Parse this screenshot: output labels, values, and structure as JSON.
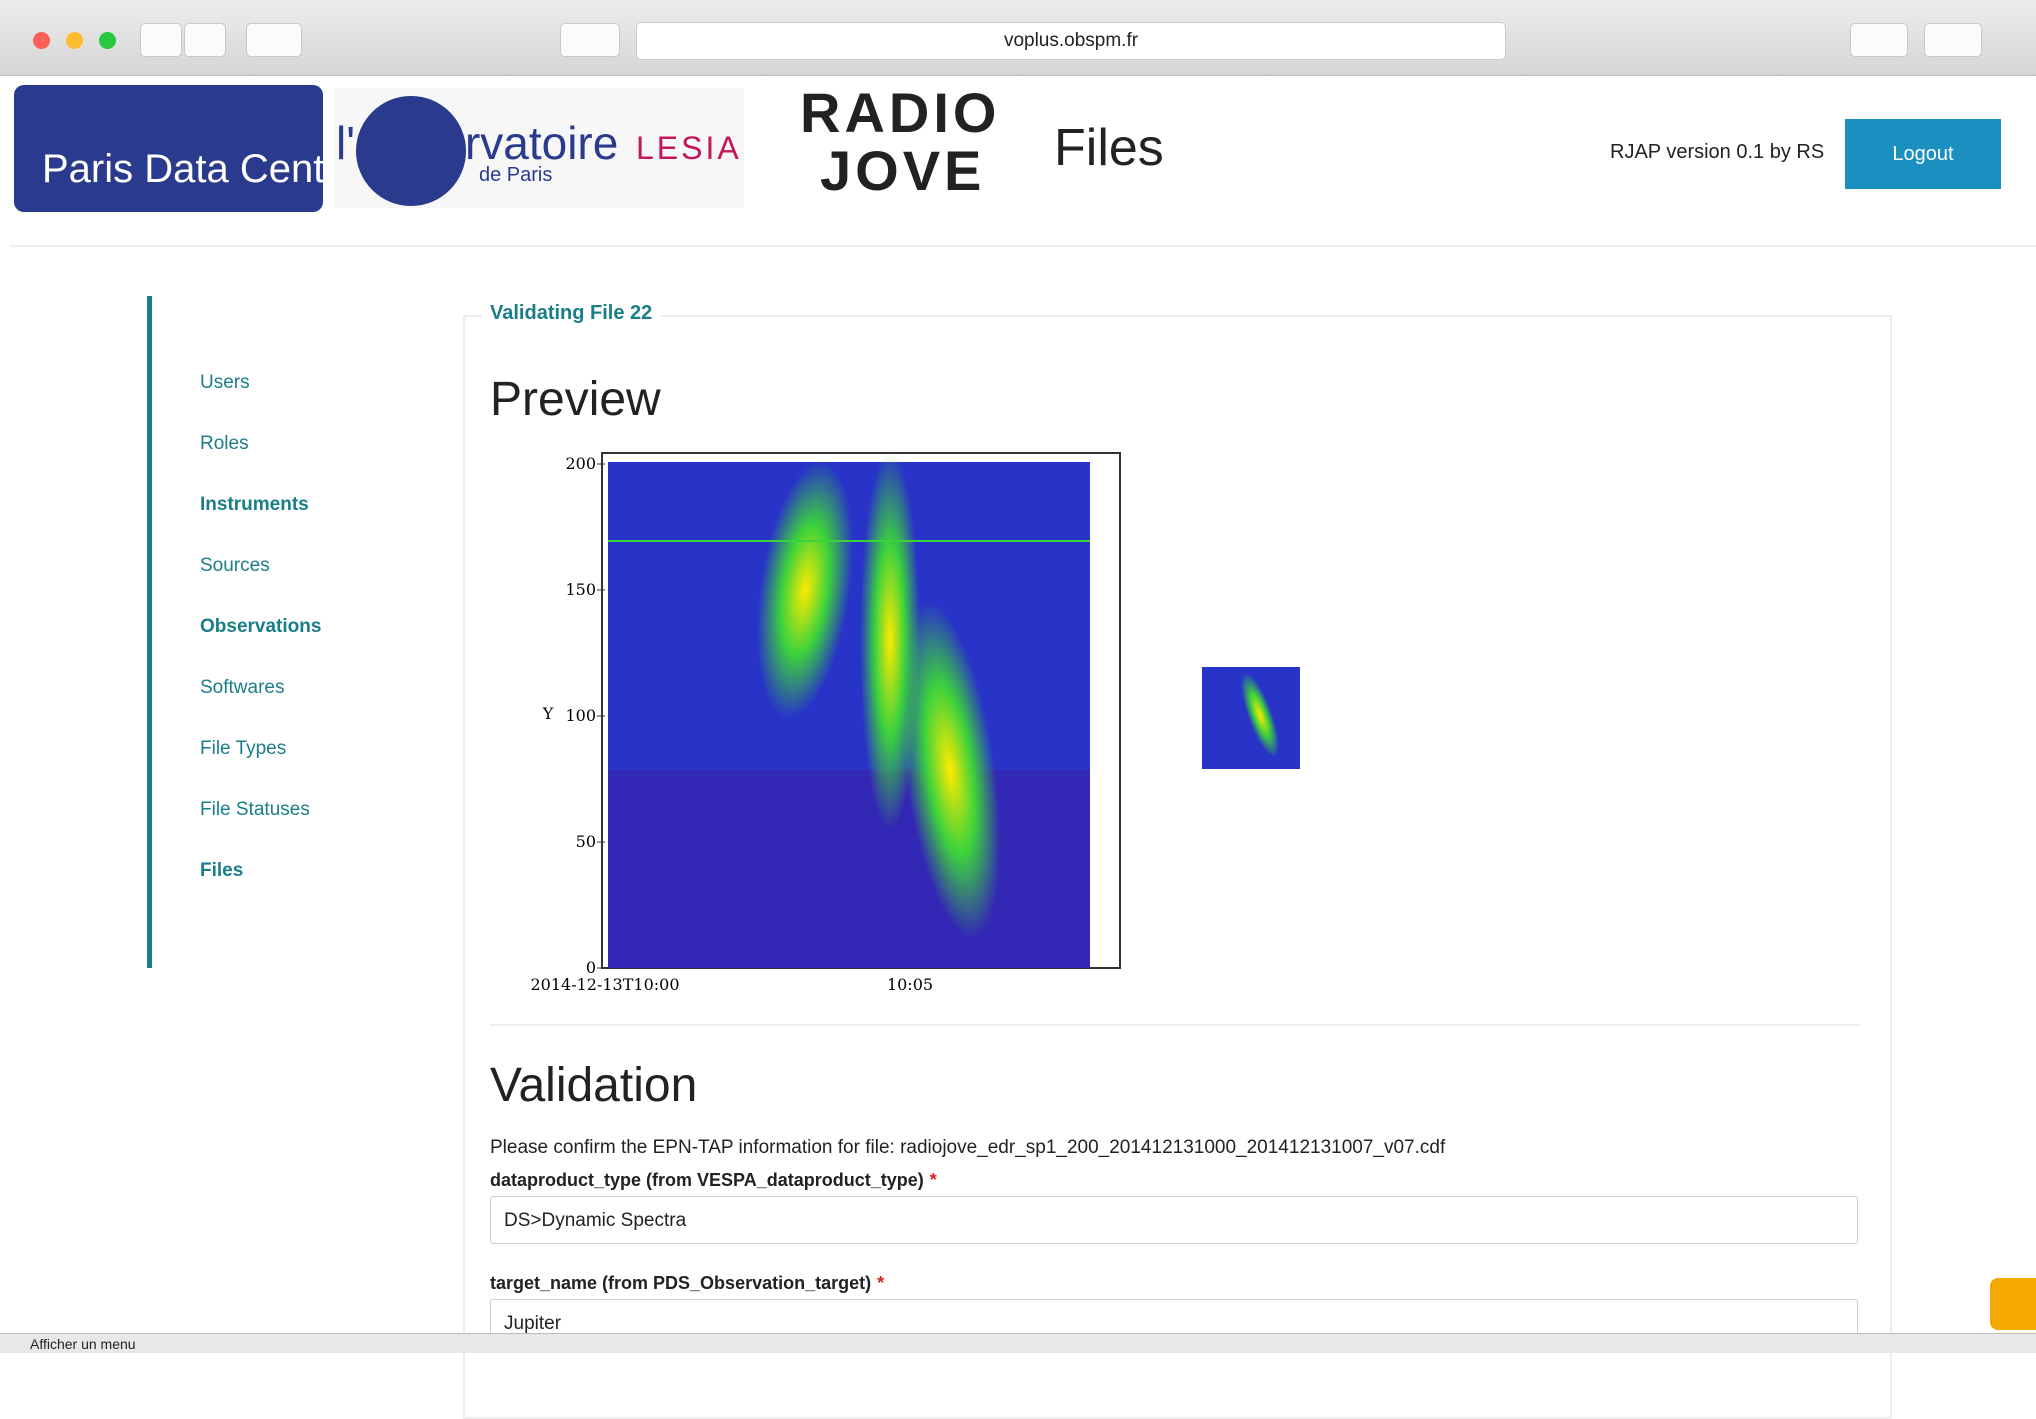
{
  "browser": {
    "url": "voplus.obspm.fr",
    "status_bar": "Afficher un menu"
  },
  "header": {
    "logo_pdc": "Paris Data Centre",
    "logo_obs": "l'Observatoire",
    "logo_obs_sub": "de Paris",
    "logo_lesia": "LESIA",
    "logo_radio": "RADIO",
    "logo_jove": "JOVE",
    "app_title": "Files",
    "version": "RJAP version 0.1 by RS",
    "logout": "Logout"
  },
  "nav": [
    "Users",
    "Roles",
    "Instruments",
    "Sources",
    "Observations",
    "Softwares",
    "File Types",
    "File Statuses",
    "Files"
  ],
  "legend": "Validating File 22",
  "preview": {
    "heading": "Preview",
    "chart": {
      "type": "spectrogram",
      "ylabel": "Y",
      "ylim": [
        0,
        200
      ],
      "yticks": [
        0,
        50,
        100,
        150,
        200
      ],
      "xtick_labels": [
        "2014-12-13T10:00",
        "10:05"
      ]
    }
  },
  "validation": {
    "heading": "Validation",
    "intro": "Please confirm the EPN-TAP information for file: radiojove_edr_sp1_200_201412131000_201412131007_v07.cdf",
    "fields": [
      {
        "label": "dataproduct_type (from VESPA_dataproduct_type)",
        "required": "*",
        "value": "DS>Dynamic Spectra"
      },
      {
        "label": "target_name (from PDS_Observation_target)",
        "required": "*",
        "value": "Jupiter"
      }
    ]
  }
}
